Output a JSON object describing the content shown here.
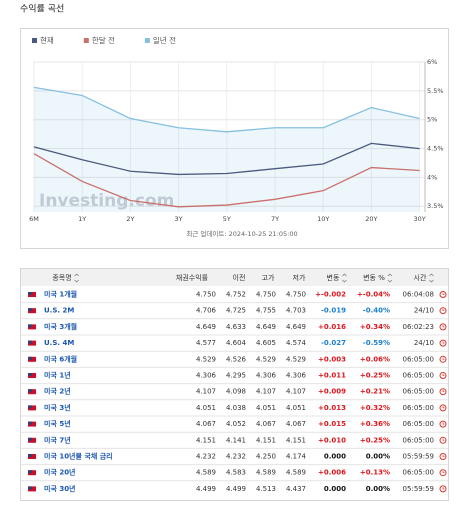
{
  "title": "수익률 곡선",
  "chart_data": {
    "type": "line",
    "categories": [
      "6M",
      "1Y",
      "2Y",
      "3Y",
      "5Y",
      "7Y",
      "10Y",
      "20Y",
      "30Y"
    ],
    "series": [
      {
        "name": "현재",
        "color": "#4a5a80",
        "values": [
          4.529,
          4.306,
          4.107,
          4.051,
          4.067,
          4.151,
          4.232,
          4.589,
          4.499
        ]
      },
      {
        "name": "한달 전",
        "color": "#c9706b",
        "values": [
          4.41,
          3.93,
          3.6,
          3.49,
          3.52,
          3.62,
          3.77,
          4.17,
          4.12
        ]
      },
      {
        "name": "일년 전",
        "color": "#86c0e2",
        "values": [
          5.56,
          5.42,
          5.02,
          4.86,
          4.79,
          4.86,
          4.86,
          5.21,
          5.02
        ],
        "area": true
      }
    ],
    "ylim": [
      3.4,
      6
    ],
    "yticks": [
      {
        "value": 3.5,
        "label": "3.5%"
      },
      {
        "value": 4,
        "label": "4%"
      },
      {
        "value": 4.5,
        "label": "4.5%"
      },
      {
        "value": 5,
        "label": "5%"
      },
      {
        "value": 5.5,
        "label": "5.5%"
      },
      {
        "value": 6,
        "label": "6%"
      }
    ],
    "grid": true,
    "watermark": "Investing.com",
    "updated": "최근 업데이트: 2024-10-25 21:05:00"
  },
  "table": {
    "header": [
      "종목명",
      "채권수익률",
      "이전",
      "고가",
      "저가",
      "변동",
      "변동 %",
      "시간"
    ],
    "rows": [
      [
        "미국 1개월",
        "4.750",
        "4.752",
        "4.750",
        "4.750",
        "+-0.002",
        "+-0.04%",
        "06:04:08"
      ],
      [
        "U.S. 2M",
        "4.706",
        "4.725",
        "4.755",
        "4.703",
        "-0.019",
        "-0.40%",
        "24/10"
      ],
      [
        "미국 3개월",
        "4.649",
        "4.633",
        "4.649",
        "4.649",
        "+0.016",
        "+0.34%",
        "06:02:23"
      ],
      [
        "U.S. 4M",
        "4.577",
        "4.604",
        "4.605",
        "4.574",
        "-0.027",
        "-0.59%",
        "24/10"
      ],
      [
        "미국 6개월",
        "4.529",
        "4.526",
        "4.529",
        "4.529",
        "+0.003",
        "+0.06%",
        "06:05:00"
      ],
      [
        "미국 1년",
        "4.306",
        "4.295",
        "4.306",
        "4.306",
        "+0.011",
        "+0.25%",
        "06:05:00"
      ],
      [
        "미국 2년",
        "4.107",
        "4.098",
        "4.107",
        "4.107",
        "+0.009",
        "+0.21%",
        "06:05:00"
      ],
      [
        "미국 3년",
        "4.051",
        "4.038",
        "4.051",
        "4.051",
        "+0.013",
        "+0.32%",
        "06:05:00"
      ],
      [
        "미국 5년",
        "4.067",
        "4.052",
        "4.067",
        "4.067",
        "+0.015",
        "+0.36%",
        "06:05:00"
      ],
      [
        "미국 7년",
        "4.151",
        "4.141",
        "4.151",
        "4.151",
        "+0.010",
        "+0.25%",
        "06:05:00"
      ],
      [
        "미국 10년물 국채 금리",
        "4.232",
        "4.232",
        "4.250",
        "4.174",
        "0.000",
        "0.00%",
        "05:59:59"
      ],
      [
        "미국 20년",
        "4.589",
        "4.583",
        "4.589",
        "4.589",
        "+0.006",
        "+0.13%",
        "06:05:00"
      ],
      [
        "미국 30년",
        "4.499",
        "4.499",
        "4.513",
        "4.437",
        "0.000",
        "0.00%",
        "05:59:59"
      ]
    ]
  }
}
